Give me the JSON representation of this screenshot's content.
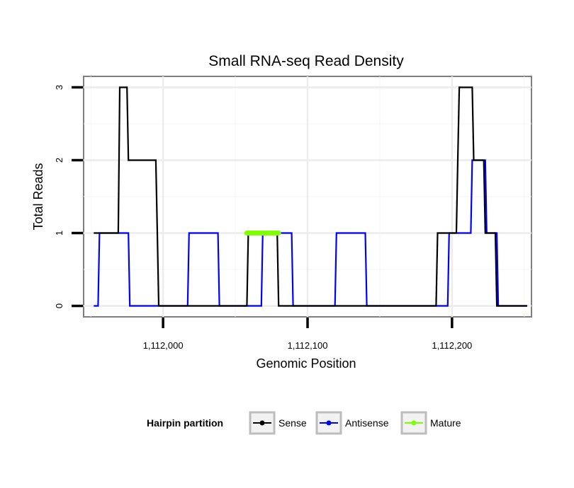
{
  "chart_data": {
    "type": "line",
    "title": "Small RNA-seq Read Density",
    "xlabel": "Genomic Position",
    "ylabel": "Total Reads",
    "xlim": [
      1111945,
      1112255
    ],
    "ylim": [
      -0.15,
      3.15
    ],
    "x_ticks": [
      1112000,
      1112100,
      1112200
    ],
    "x_tick_labels": [
      "1,112,000",
      "1,112,100",
      "1,112,200"
    ],
    "y_ticks": [
      0,
      1,
      2,
      3
    ],
    "y_tick_labels": [
      "0",
      "1",
      "2",
      "3"
    ],
    "grid": true,
    "legend": {
      "title": "Hairpin partition",
      "position": "bottom"
    },
    "series": [
      {
        "name": "Sense",
        "color": "#000000",
        "x": [
          1111952,
          1111969,
          1111970,
          1111975,
          1111976,
          1111995,
          1111996,
          1111997,
          1112058,
          1112059,
          1112079,
          1112080,
          1112189,
          1112190,
          1112203,
          1112204,
          1112205,
          1112214,
          1112215,
          1112222,
          1112223,
          1112230,
          1112231,
          1112252
        ],
        "y": [
          1,
          1,
          3,
          3,
          2,
          2,
          1,
          0,
          0,
          1,
          1,
          0,
          0,
          1,
          1,
          2,
          3,
          3,
          2,
          2,
          1,
          1,
          0,
          0
        ]
      },
      {
        "name": "Antisense",
        "color": "#0000ff",
        "x": [
          1111952,
          1111955,
          1111956,
          1111976,
          1111977,
          1112017,
          1112018,
          1112038,
          1112039,
          1112068,
          1112069,
          1112089,
          1112090,
          1112119,
          1112120,
          1112140,
          1112141,
          1112197,
          1112198,
          1112213,
          1112214,
          1112223,
          1112224,
          1112231,
          1112232,
          1112252
        ],
        "y": [
          0,
          0,
          1,
          1,
          0,
          0,
          1,
          1,
          0,
          0,
          1,
          1,
          0,
          0,
          1,
          1,
          0,
          0,
          1,
          1,
          2,
          2,
          1,
          1,
          0,
          0
        ]
      },
      {
        "name": "Mature",
        "color": "#7fff00",
        "x": [
          1112058,
          1112080
        ],
        "y": [
          1,
          1
        ]
      }
    ]
  }
}
